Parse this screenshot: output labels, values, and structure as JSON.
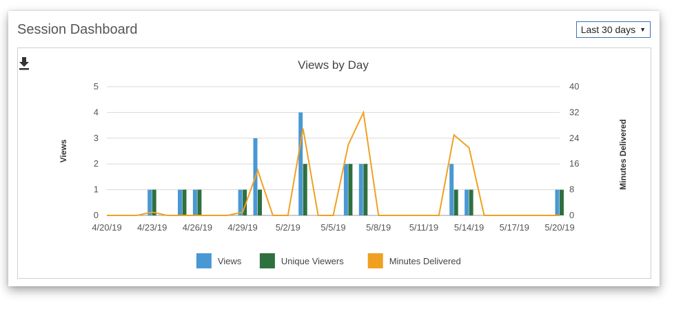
{
  "header": {
    "title": "Session Dashboard",
    "range_label": "Last 30 days"
  },
  "icons": {
    "download": "download-icon",
    "dropdown": "caret-down-icon"
  },
  "chart_data": {
    "type": "bar",
    "title": "Views by Day",
    "ylabel": "Views",
    "y2label": "Minutes Delivered",
    "ylim": [
      0,
      5
    ],
    "y2lim": [
      0,
      40
    ],
    "yticks": [
      0,
      1,
      2,
      3,
      4,
      5
    ],
    "y2ticks": [
      0,
      8,
      16,
      24,
      32,
      40
    ],
    "grid": true,
    "legend_position": "bottom",
    "x": [
      "4/20/19",
      "4/21/19",
      "4/22/19",
      "4/23/19",
      "4/24/19",
      "4/25/19",
      "4/26/19",
      "4/27/19",
      "4/28/19",
      "4/29/19",
      "4/30/19",
      "5/1/19",
      "5/2/19",
      "5/3/19",
      "5/4/19",
      "5/5/19",
      "5/6/19",
      "5/7/19",
      "5/8/19",
      "5/9/19",
      "5/10/19",
      "5/11/19",
      "5/12/19",
      "5/13/19",
      "5/14/19",
      "5/15/19",
      "5/16/19",
      "5/17/19",
      "5/18/19",
      "5/19/19",
      "5/20/19"
    ],
    "xtick_labels": [
      "4/20/19",
      "4/23/19",
      "4/26/19",
      "4/29/19",
      "5/2/19",
      "5/5/19",
      "5/8/19",
      "5/11/19",
      "5/14/19",
      "5/17/19",
      "5/20/19"
    ],
    "series": [
      {
        "name": "Views",
        "kind": "bar",
        "axis": "left",
        "color": "#4a98d3",
        "values": [
          0,
          0,
          0,
          1,
          0,
          1,
          1,
          0,
          0,
          1,
          3,
          0,
          0,
          4,
          0,
          0,
          2,
          2,
          0,
          0,
          0,
          0,
          0,
          2,
          1,
          0,
          0,
          0,
          0,
          0,
          1
        ]
      },
      {
        "name": "Unique Viewers",
        "kind": "bar",
        "axis": "left",
        "color": "#2e7040",
        "values": [
          0,
          0,
          0,
          1,
          0,
          1,
          1,
          0,
          0,
          1,
          1,
          0,
          0,
          2,
          0,
          0,
          2,
          2,
          0,
          0,
          0,
          0,
          0,
          1,
          1,
          0,
          0,
          0,
          0,
          0,
          1
        ]
      },
      {
        "name": "Minutes Delivered",
        "kind": "line",
        "axis": "right",
        "color": "#f0a020",
        "values": [
          0,
          0,
          0,
          1,
          0,
          0,
          0,
          0,
          0,
          1,
          14,
          0,
          0,
          27,
          0,
          0,
          22,
          32,
          0,
          0,
          0,
          0,
          0,
          25,
          21,
          0,
          0,
          0,
          0,
          0,
          0
        ]
      }
    ]
  }
}
